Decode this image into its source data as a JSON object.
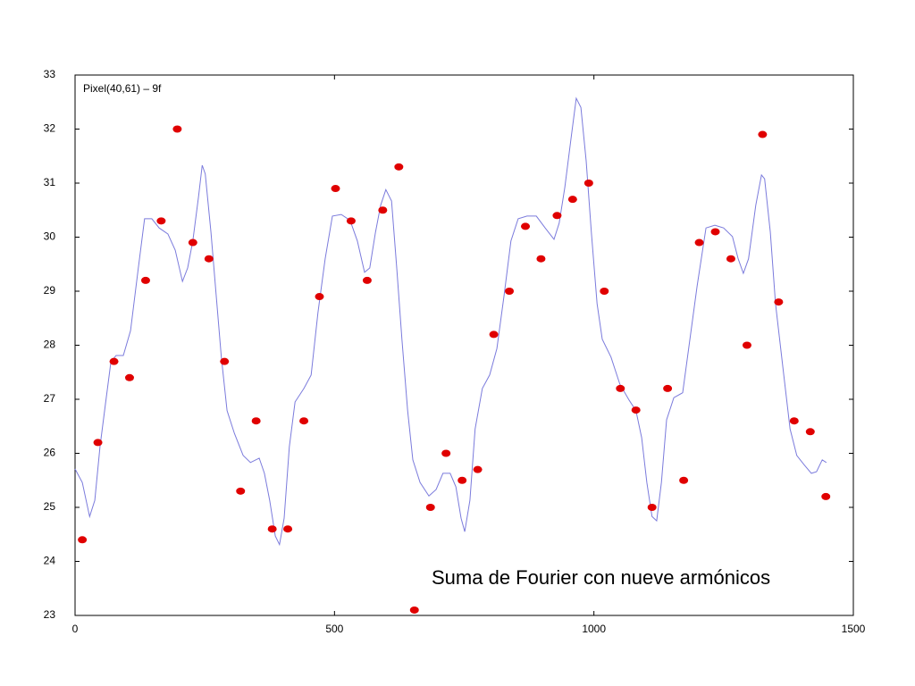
{
  "chart_data": {
    "type": "scatter",
    "annotations": [
      "Pixel(40,61) – 9f",
      "Suma de Fourier con nueve armónicos"
    ],
    "xlim": [
      0,
      1500
    ],
    "ylim": [
      23,
      33
    ],
    "xticks": [
      0,
      500,
      1000,
      1500
    ],
    "yticks": [
      23,
      24,
      25,
      26,
      27,
      28,
      29,
      30,
      31,
      32,
      33
    ],
    "series": [
      {
        "type": "line",
        "color": "#7b7bdc",
        "x": [
          0,
          14,
          28,
          38,
          48,
          59,
          69,
          79,
          93,
          107,
          122,
          134,
          148,
          162,
          179,
          193,
          207,
          217,
          227,
          238,
          245,
          251,
          262,
          272,
          282,
          293,
          307,
          324,
          338,
          355,
          365,
          375,
          386,
          394,
          403,
          413,
          424,
          441,
          455,
          468,
          482,
          496,
          513,
          530,
          544,
          558,
          568,
          579,
          589,
          599,
          610,
          620,
          630,
          641,
          651,
          665,
          682,
          696,
          709,
          723,
          734,
          744,
          751,
          761,
          771,
          785,
          799,
          813,
          827,
          840,
          854,
          871,
          889,
          906,
          923,
          933,
          944,
          957,
          966,
          975,
          985,
          995,
          1006,
          1016,
          1033,
          1050,
          1068,
          1081,
          1092,
          1102,
          1112,
          1121,
          1130,
          1140,
          1154,
          1171,
          1185,
          1199,
          1216,
          1233,
          1250,
          1267,
          1278,
          1288,
          1298,
          1312,
          1323,
          1329,
          1340,
          1350,
          1364,
          1378,
          1391,
          1405,
          1419,
          1429,
          1440,
          1448
        ],
        "values": [
          25.71,
          25.46,
          24.83,
          25.13,
          26.12,
          26.95,
          27.69,
          27.81,
          27.81,
          28.27,
          29.43,
          30.34,
          30.34,
          30.17,
          30.06,
          29.76,
          29.18,
          29.43,
          29.93,
          30.75,
          31.33,
          31.17,
          30.09,
          28.93,
          27.78,
          26.79,
          26.37,
          25.96,
          25.83,
          25.91,
          25.63,
          25.13,
          24.47,
          24.31,
          24.8,
          26.12,
          26.95,
          27.2,
          27.45,
          28.6,
          29.6,
          30.39,
          30.42,
          30.31,
          29.93,
          29.35,
          29.43,
          30.09,
          30.59,
          30.88,
          30.67,
          29.43,
          28.11,
          26.79,
          25.88,
          25.46,
          25.21,
          25.33,
          25.63,
          25.63,
          25.38,
          24.8,
          24.55,
          25.13,
          26.45,
          27.2,
          27.45,
          27.94,
          28.93,
          29.93,
          30.34,
          30.39,
          30.39,
          30.17,
          29.96,
          30.26,
          30.92,
          31.91,
          32.57,
          32.4,
          31.41,
          30.09,
          28.77,
          28.11,
          27.78,
          27.28,
          26.98,
          26.79,
          26.29,
          25.46,
          24.83,
          24.75,
          25.46,
          26.62,
          27.03,
          27.12,
          28.11,
          29.1,
          30.17,
          30.22,
          30.17,
          30.01,
          29.6,
          29.33,
          29.6,
          30.59,
          31.15,
          31.08,
          30.09,
          28.77,
          27.61,
          26.45,
          25.96,
          25.79,
          25.63,
          25.66,
          25.88,
          25.83
        ]
      },
      {
        "type": "scatter",
        "color": "#e00000",
        "x": [
          14,
          44,
          75,
          105,
          136,
          166,
          197,
          227,
          258,
          288,
          319,
          349,
          380,
          410,
          441,
          471,
          502,
          532,
          563,
          593,
          624,
          654,
          685,
          715,
          746,
          776,
          807,
          837,
          868,
          898,
          929,
          959,
          990,
          1020,
          1051,
          1081,
          1112,
          1142,
          1173,
          1203,
          1234,
          1264,
          1295,
          1325,
          1356,
          1386,
          1417,
          1447
        ],
        "values": [
          24.4,
          26.2,
          27.7,
          27.4,
          29.2,
          30.3,
          32.0,
          29.9,
          29.6,
          27.7,
          25.3,
          26.6,
          24.6,
          24.6,
          26.6,
          28.9,
          30.9,
          30.3,
          29.2,
          30.5,
          31.3,
          23.1,
          25.0,
          26.0,
          25.5,
          25.7,
          28.2,
          29.0,
          30.2,
          29.6,
          30.4,
          30.7,
          31.0,
          29.0,
          27.2,
          26.8,
          25.0,
          27.2,
          25.5,
          29.9,
          30.1,
          29.6,
          28.0,
          31.9,
          28.8,
          26.6,
          26.4,
          25.2
        ]
      }
    ]
  }
}
